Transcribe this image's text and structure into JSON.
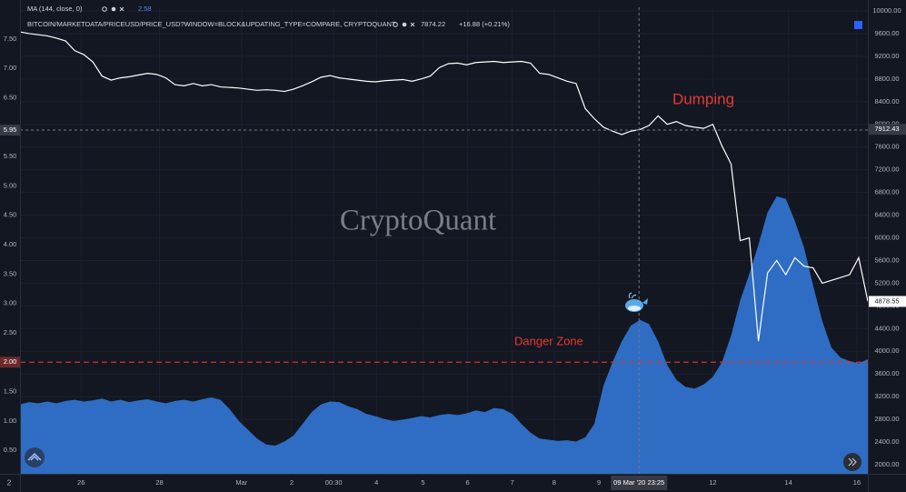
{
  "chart_data": {
    "type": "line",
    "corner_label": "2",
    "watermark": "CryptoQuant",
    "legend_values": [
      2.58,
      7874.22
    ],
    "change_label": "+16.88 (+0.21%)",
    "annotations": [
      {
        "text": "Dumping"
      },
      {
        "text": "Danger Zone",
        "value": 2.0,
        "label": "2.00",
        "color": "#d7332b"
      }
    ],
    "crosshair": {
      "x": 67.9,
      "label": "09 Mar '20  23:25",
      "y": 5.95,
      "y2": 7912.43
    },
    "price_marker": {
      "value": 4878.55,
      "label": "4878.55"
    },
    "x": [
      0,
      1,
      2,
      3,
      4,
      5,
      6,
      7,
      8,
      9,
      10,
      11,
      12,
      13,
      14,
      15,
      16,
      17,
      18,
      19,
      20,
      21,
      22,
      23,
      24,
      25,
      26,
      27,
      28,
      29,
      30,
      31,
      32,
      33,
      34,
      35,
      36,
      37,
      38,
      39,
      40,
      41,
      42,
      43,
      44,
      45,
      46,
      47,
      48,
      49,
      50,
      51,
      52,
      53,
      54,
      55,
      56,
      57,
      58,
      59,
      60,
      61,
      62,
      63,
      64,
      65,
      66,
      67,
      68,
      69,
      70,
      71,
      72,
      73,
      74,
      75,
      76,
      77,
      78,
      79,
      80,
      81,
      82,
      83,
      84,
      85,
      86,
      87,
      88,
      89,
      90,
      91,
      92,
      93
    ],
    "xlim": [
      0,
      93
    ],
    "xticks": [
      {
        "value": 6.7,
        "label": "26"
      },
      {
        "value": 15.3,
        "label": "28"
      },
      {
        "value": 24.3,
        "label": "Mar"
      },
      {
        "value": 29.8,
        "label": "2"
      },
      {
        "value": 34.4,
        "label": "00:30"
      },
      {
        "value": 39.1,
        "label": "4"
      },
      {
        "value": 44.2,
        "label": "5"
      },
      {
        "value": 49.1,
        "label": "6"
      },
      {
        "value": 54,
        "label": "7"
      },
      {
        "value": 58.6,
        "label": "8"
      },
      {
        "value": 63.5,
        "label": "9"
      },
      {
        "value": 76,
        "label": "12"
      },
      {
        "value": 84.3,
        "label": "14"
      },
      {
        "value": 91.8,
        "label": "16"
      }
    ],
    "ylim": [
      0.1,
      8.04
    ],
    "yticks": [
      {
        "value": 0.5,
        "label": "0.50"
      },
      {
        "value": 1,
        "label": "1.00"
      },
      {
        "value": 1.5,
        "label": "1.50"
      },
      {
        "value": 2,
        "label": "2.00"
      },
      {
        "value": 2.5,
        "label": "2.50"
      },
      {
        "value": 3,
        "label": "3.00"
      },
      {
        "value": 3.5,
        "label": "3.50"
      },
      {
        "value": 4,
        "label": "4.00"
      },
      {
        "value": 4.5,
        "label": "4.50"
      },
      {
        "value": 5,
        "label": "5.00"
      },
      {
        "value": 5.5,
        "label": "5.50"
      },
      {
        "value": 6,
        "label": "6.00"
      },
      {
        "value": 6.5,
        "label": "6.50"
      },
      {
        "value": 7,
        "label": "7.00"
      },
      {
        "value": 7.5,
        "label": "7.50"
      }
    ],
    "y2lim": [
      1840,
      10064
    ],
    "y2ticks": [
      {
        "value": 2000,
        "label": "2000.00"
      },
      {
        "value": 2400,
        "label": "2400.00"
      },
      {
        "value": 2800,
        "label": "2800.00"
      },
      {
        "value": 3200,
        "label": "3200.00"
      },
      {
        "value": 3600,
        "label": "3600.00"
      },
      {
        "value": 4000,
        "label": "4000.00"
      },
      {
        "value": 4400,
        "label": "4400.00"
      },
      {
        "value": 4800,
        "label": "4800.00"
      },
      {
        "value": 5200,
        "label": "5200.00"
      },
      {
        "value": 5600,
        "label": "5600.00"
      },
      {
        "value": 6000,
        "label": "6000.00"
      },
      {
        "value": 6400,
        "label": "6400.00"
      },
      {
        "value": 6800,
        "label": "6800.00"
      },
      {
        "value": 7200,
        "label": "7200.00"
      },
      {
        "value": 7600,
        "label": "7600.00"
      },
      {
        "value": 8000,
        "label": "8000.00"
      },
      {
        "value": 8400,
        "label": "8400.00"
      },
      {
        "value": 8800,
        "label": "8800.00"
      },
      {
        "value": 9200,
        "label": "9200.00"
      },
      {
        "value": 9600,
        "label": "9600.00"
      },
      {
        "value": 10000,
        "label": "10000.00"
      }
    ],
    "grid": true,
    "series": [
      {
        "name": "MA (144, close, 0)",
        "type": "area",
        "axis": "y",
        "color": "#2f6dc4",
        "values": [
          1.28,
          1.32,
          1.3,
          1.33,
          1.3,
          1.34,
          1.36,
          1.33,
          1.35,
          1.38,
          1.33,
          1.36,
          1.32,
          1.35,
          1.37,
          1.33,
          1.3,
          1.34,
          1.36,
          1.33,
          1.37,
          1.4,
          1.36,
          1.2,
          1.0,
          0.85,
          0.7,
          0.6,
          0.58,
          0.65,
          0.75,
          0.95,
          1.15,
          1.28,
          1.33,
          1.32,
          1.25,
          1.2,
          1.12,
          1.08,
          1.03,
          1.0,
          1.02,
          1.05,
          1.08,
          1.06,
          1.1,
          1.12,
          1.1,
          1.13,
          1.18,
          1.15,
          1.22,
          1.2,
          1.12,
          0.95,
          0.8,
          0.7,
          0.68,
          0.66,
          0.67,
          0.65,
          0.72,
          0.95,
          1.6,
          2.0,
          2.35,
          2.62,
          2.72,
          2.65,
          2.35,
          1.95,
          1.7,
          1.58,
          1.55,
          1.62,
          1.75,
          2.0,
          2.45,
          3.05,
          3.5,
          4.0,
          4.55,
          4.82,
          4.78,
          4.4,
          3.95,
          3.3,
          2.7,
          2.25,
          2.08,
          2.02,
          1.98,
          2.05
        ]
      },
      {
        "name": "BITCOIN/MARKETDATA/PRICEUSD/PRICE_USD?WINDOW=BLOCK&UPDATING_TYPE=COMPARE, CRYPTOQUANT",
        "type": "line",
        "axis": "y2",
        "color": "#ffffff",
        "values": [
          9630,
          9600,
          9580,
          9560,
          9520,
          9470,
          9300,
          9230,
          9100,
          8850,
          8780,
          8820,
          8840,
          8870,
          8900,
          8880,
          8820,
          8700,
          8680,
          8720,
          8680,
          8700,
          8660,
          8650,
          8640,
          8620,
          8600,
          8610,
          8600,
          8580,
          8620,
          8680,
          8750,
          8830,
          8860,
          8820,
          8800,
          8780,
          8760,
          8750,
          8770,
          8780,
          8790,
          8760,
          8800,
          8850,
          9000,
          9070,
          9080,
          9050,
          9090,
          9100,
          9110,
          9090,
          9100,
          9110,
          9080,
          8900,
          8880,
          8820,
          8760,
          8720,
          8280,
          8100,
          7950,
          7880,
          7820,
          7880,
          7910,
          7980,
          8150,
          8000,
          8050,
          7980,
          7950,
          7930,
          8000,
          7620,
          7300,
          5950,
          6000,
          4180,
          5380,
          5600,
          5350,
          5650,
          5500,
          5470,
          5200,
          5250,
          5300,
          5350,
          5650,
          4880
        ]
      }
    ]
  }
}
